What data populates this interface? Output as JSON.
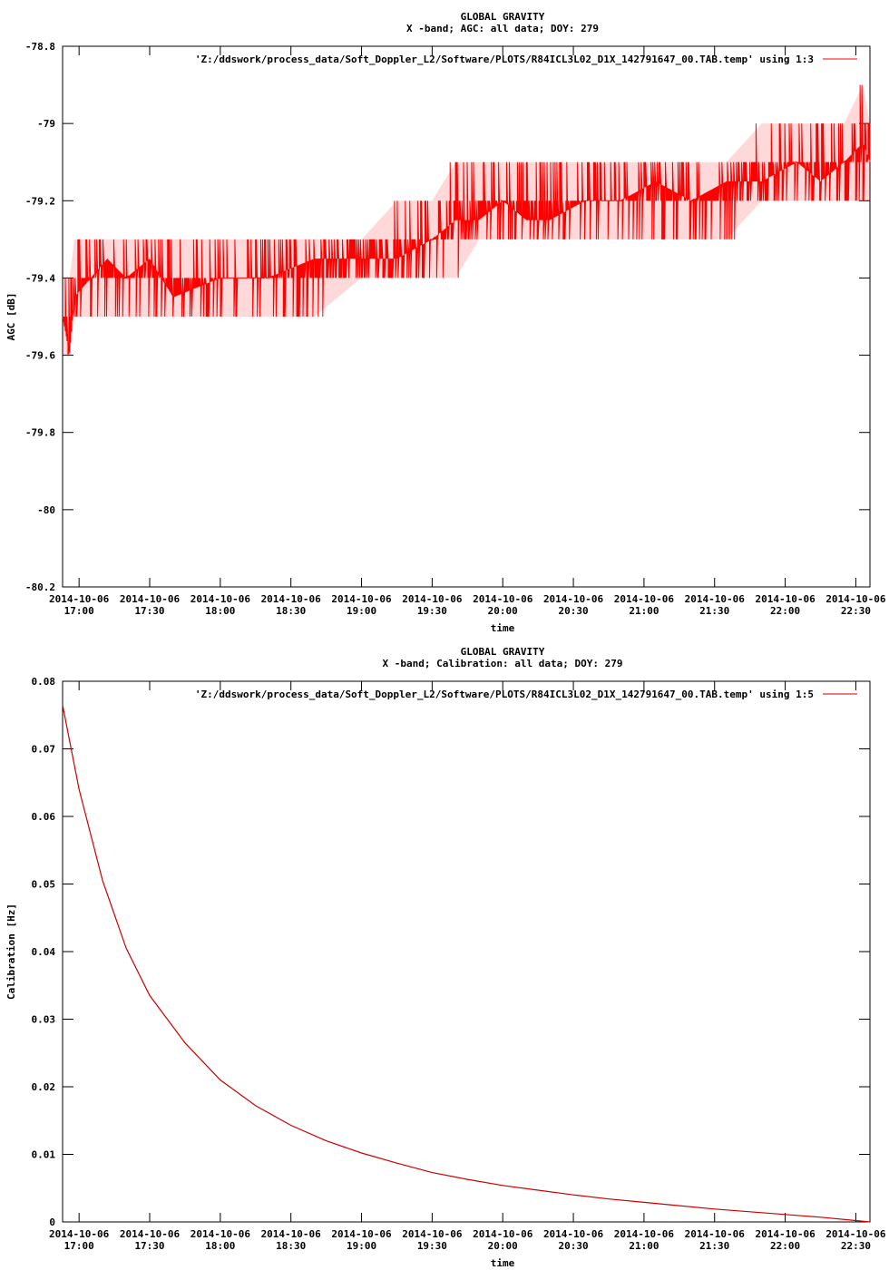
{
  "chart_data": [
    {
      "type": "line",
      "title": "GLOBAL GRAVITY",
      "subtitle": "X -band; AGC: all data; DOY: 279",
      "xlabel": "time",
      "ylabel": "AGC [dB]",
      "ylim": [
        -80.2,
        -78.8
      ],
      "yticks": [
        -78.8,
        -79,
        -79.2,
        -79.4,
        -79.6,
        -79.8,
        -80,
        -80.2
      ],
      "ytick_labels": [
        "-78.8",
        "-79",
        "-79.2",
        "-79.4",
        "-79.6",
        "-79.8",
        "-80",
        "-80.2"
      ],
      "xlim": [
        "2014-10-06 16:53",
        "2014-10-06 22:36"
      ],
      "xticks": [
        "2014-10-06 17:00",
        "2014-10-06 17:30",
        "2014-10-06 18:00",
        "2014-10-06 18:30",
        "2014-10-06 19:00",
        "2014-10-06 19:30",
        "2014-10-06 20:00",
        "2014-10-06 20:30",
        "2014-10-06 21:00",
        "2014-10-06 21:30",
        "2014-10-06 22:00",
        "2014-10-06 22:30"
      ],
      "xtick_labels": [
        [
          "2014-10-06",
          "17:00"
        ],
        [
          "2014-10-06",
          "17:30"
        ],
        [
          "2014-10-06",
          "18:00"
        ],
        [
          "2014-10-06",
          "18:30"
        ],
        [
          "2014-10-06",
          "19:00"
        ],
        [
          "2014-10-06",
          "19:30"
        ],
        [
          "2014-10-06",
          "20:00"
        ],
        [
          "2014-10-06",
          "20:30"
        ],
        [
          "2014-10-06",
          "21:00"
        ],
        [
          "2014-10-06",
          "21:30"
        ],
        [
          "2014-10-06",
          "22:00"
        ],
        [
          "2014-10-06",
          "22:30"
        ]
      ],
      "grid": false,
      "legend_position": "top-right",
      "series": [
        {
          "name": "'Z:/ddswork/process_data/Soft_Doppler_L2/Software/PLOTS/R84ICL3L02_D1X_142791647_00.TAB.temp' using 1:3",
          "color": "#ff0000",
          "x": [
            "2014-10-06 16:53",
            "2014-10-06 16:56",
            "2014-10-06 16:58",
            "2014-10-06 17:05",
            "2014-10-06 17:12",
            "2014-10-06 17:20",
            "2014-10-06 17:30",
            "2014-10-06 17:40",
            "2014-10-06 18:00",
            "2014-10-06 18:20",
            "2014-10-06 18:40",
            "2014-10-06 19:00",
            "2014-10-06 19:15",
            "2014-10-06 19:30",
            "2014-10-06 19:40",
            "2014-10-06 19:50",
            "2014-10-06 20:00",
            "2014-10-06 20:10",
            "2014-10-06 20:20",
            "2014-10-06 20:35",
            "2014-10-06 20:50",
            "2014-10-06 21:05",
            "2014-10-06 21:20",
            "2014-10-06 21:35",
            "2014-10-06 21:50",
            "2014-10-06 22:05",
            "2014-10-06 22:15",
            "2014-10-06 22:25",
            "2014-10-06 22:33",
            "2014-10-06 22:36"
          ],
          "y": [
            -79.5,
            -79.6,
            -79.45,
            -79.4,
            -79.35,
            -79.4,
            -79.35,
            -79.45,
            -79.4,
            -79.4,
            -79.35,
            -79.35,
            -79.35,
            -79.3,
            -79.25,
            -79.25,
            -79.2,
            -79.25,
            -79.25,
            -79.2,
            -79.2,
            -79.15,
            -79.2,
            -79.15,
            -79.15,
            -79.1,
            -79.15,
            -79.1,
            -79.05,
            -79.1
          ],
          "y_band_low": [
            -79.6,
            -79.6,
            -79.5,
            -79.5,
            -79.5,
            -79.5,
            -79.5,
            -79.5,
            -79.5,
            -79.5,
            -79.5,
            -79.4,
            -79.4,
            -79.4,
            -79.4,
            -79.3,
            -79.3,
            -79.3,
            -79.3,
            -79.3,
            -79.3,
            -79.3,
            -79.3,
            -79.3,
            -79.2,
            -79.2,
            -79.2,
            -79.2,
            -79.2,
            -79.2
          ],
          "y_band_high": [
            -79.4,
            -79.4,
            -79.3,
            -79.3,
            -79.3,
            -79.3,
            -79.3,
            -79.3,
            -79.3,
            -79.3,
            -79.3,
            -79.3,
            -79.2,
            -79.2,
            -79.1,
            -79.1,
            -79.1,
            -79.1,
            -79.1,
            -79.1,
            -79.1,
            -79.1,
            -79.1,
            -79.1,
            -79.0,
            -79.0,
            -79.0,
            -79.0,
            -78.9,
            -79.0
          ]
        }
      ]
    },
    {
      "type": "line",
      "title": "GLOBAL GRAVITY",
      "subtitle": "X -band; Calibration: all data; DOY: 279",
      "xlabel": "time",
      "ylabel": "Calibration [Hz]",
      "ylim": [
        0,
        0.08
      ],
      "yticks": [
        0,
        0.01,
        0.02,
        0.03,
        0.04,
        0.05,
        0.06,
        0.07,
        0.08
      ],
      "ytick_labels": [
        "0",
        "0.01",
        "0.02",
        "0.03",
        "0.04",
        "0.05",
        "0.06",
        "0.07",
        "0.08"
      ],
      "xlim": [
        "2014-10-06 16:53",
        "2014-10-06 22:36"
      ],
      "xticks": [
        "2014-10-06 17:00",
        "2014-10-06 17:30",
        "2014-10-06 18:00",
        "2014-10-06 18:30",
        "2014-10-06 19:00",
        "2014-10-06 19:30",
        "2014-10-06 20:00",
        "2014-10-06 20:30",
        "2014-10-06 21:00",
        "2014-10-06 21:30",
        "2014-10-06 22:00",
        "2014-10-06 22:30"
      ],
      "xtick_labels": [
        [
          "2014-10-06",
          "17:00"
        ],
        [
          "2014-10-06",
          "17:30"
        ],
        [
          "2014-10-06",
          "18:00"
        ],
        [
          "2014-10-06",
          "18:30"
        ],
        [
          "2014-10-06",
          "19:00"
        ],
        [
          "2014-10-06",
          "19:30"
        ],
        [
          "2014-10-06",
          "20:00"
        ],
        [
          "2014-10-06",
          "20:30"
        ],
        [
          "2014-10-06",
          "21:00"
        ],
        [
          "2014-10-06",
          "21:30"
        ],
        [
          "2014-10-06",
          "22:00"
        ],
        [
          "2014-10-06",
          "22:30"
        ]
      ],
      "grid": false,
      "legend_position": "top-right",
      "series": [
        {
          "name": "'Z:/ddswork/process_data/Soft_Doppler_L2/Software/PLOTS/R84ICL3L02_D1X_142791647_00.TAB.temp' using 1:5",
          "color": "#cc0000",
          "x": [
            "2014-10-06 16:53",
            "2014-10-06 17:00",
            "2014-10-06 17:10",
            "2014-10-06 17:20",
            "2014-10-06 17:30",
            "2014-10-06 17:45",
            "2014-10-06 18:00",
            "2014-10-06 18:15",
            "2014-10-06 18:30",
            "2014-10-06 18:45",
            "2014-10-06 19:00",
            "2014-10-06 19:15",
            "2014-10-06 19:30",
            "2014-10-06 19:45",
            "2014-10-06 20:00",
            "2014-10-06 20:15",
            "2014-10-06 20:30",
            "2014-10-06 20:45",
            "2014-10-06 21:00",
            "2014-10-06 21:15",
            "2014-10-06 21:30",
            "2014-10-06 21:45",
            "2014-10-06 22:00",
            "2014-10-06 22:15",
            "2014-10-06 22:30",
            "2014-10-06 22:36"
          ],
          "y": [
            0.0765,
            0.064,
            0.0505,
            0.0405,
            0.0335,
            0.0265,
            0.021,
            0.0172,
            0.0143,
            0.012,
            0.0102,
            0.0087,
            0.0073,
            0.0063,
            0.0054,
            0.0047,
            0.004,
            0.0034,
            0.0029,
            0.0024,
            0.0019,
            0.0015,
            0.0011,
            0.0007,
            0.0002,
            0.0
          ]
        }
      ]
    }
  ]
}
